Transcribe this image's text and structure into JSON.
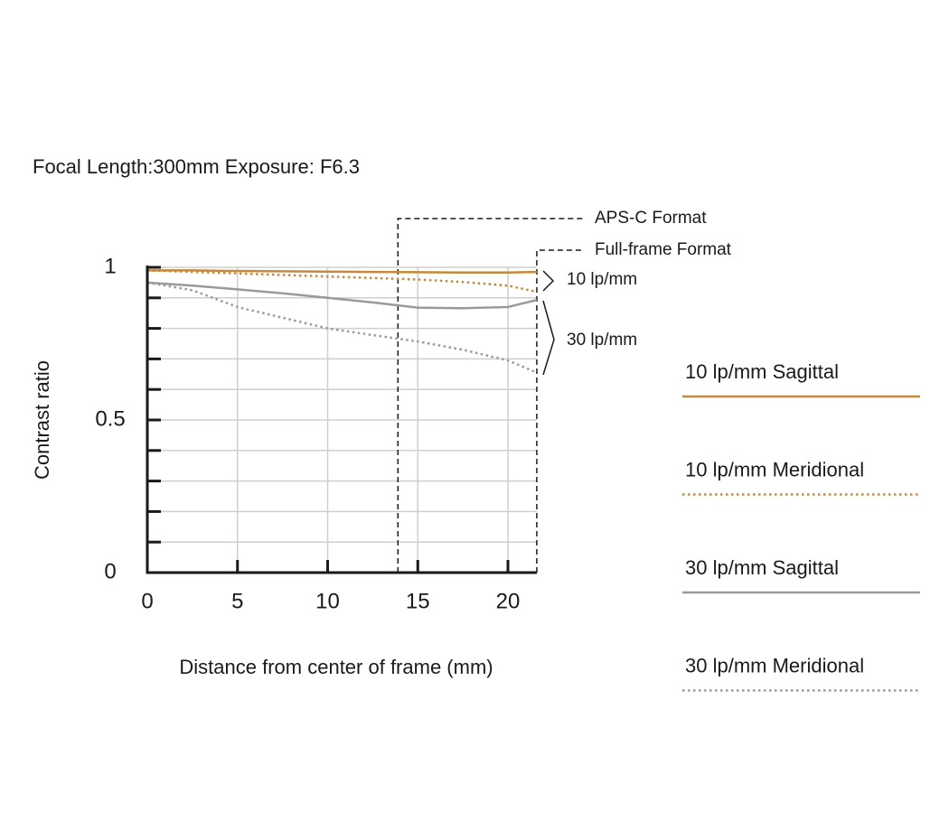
{
  "chart_data": {
    "type": "line",
    "title": "Focal Length:300mm  Exposure: F6.3",
    "x_label": "Distance from center of frame (mm)",
    "y_label": "Contrast ratio",
    "x": [
      0,
      2.5,
      5,
      7.5,
      10,
      12.5,
      15,
      17.5,
      20,
      21.6
    ],
    "series": [
      {
        "name": "10 lp/mm Sagittal",
        "color": "#c8883a",
        "style": "solid",
        "values": [
          0.99,
          0.99,
          0.988,
          0.987,
          0.986,
          0.985,
          0.984,
          0.983,
          0.983,
          0.985
        ]
      },
      {
        "name": "10 lp/mm Meridional",
        "color": "#c8883a",
        "style": "dotted",
        "values": [
          0.99,
          0.985,
          0.98,
          0.975,
          0.97,
          0.965,
          0.96,
          0.952,
          0.94,
          0.92
        ]
      },
      {
        "name": "30 lp/mm Sagittal",
        "color": "#9a9a9a",
        "style": "solid",
        "values": [
          0.95,
          0.94,
          0.928,
          0.915,
          0.9,
          0.885,
          0.868,
          0.866,
          0.87,
          0.893
        ]
      },
      {
        "name": "30 lp/mm Meridional",
        "color": "#9a9a9a",
        "style": "dotted",
        "values": [
          0.95,
          0.925,
          0.87,
          0.835,
          0.8,
          0.778,
          0.757,
          0.73,
          0.695,
          0.655
        ]
      }
    ],
    "xlim": [
      0,
      21.6
    ],
    "xticks": [
      0,
      5,
      10,
      15,
      20
    ],
    "ylim": [
      0,
      1
    ],
    "yticks": [
      0,
      0.5,
      1
    ],
    "y_minor_ticks": [
      0.1,
      0.2,
      0.3,
      0.4,
      0.6,
      0.7,
      0.8,
      0.9
    ],
    "grid": true,
    "format_lines": [
      {
        "label": "APS-C Format",
        "x": 13.9
      },
      {
        "label": "Full-frame Format",
        "x": 21.6
      }
    ],
    "group_labels": [
      "10 lp/mm",
      "30 lp/mm"
    ]
  }
}
